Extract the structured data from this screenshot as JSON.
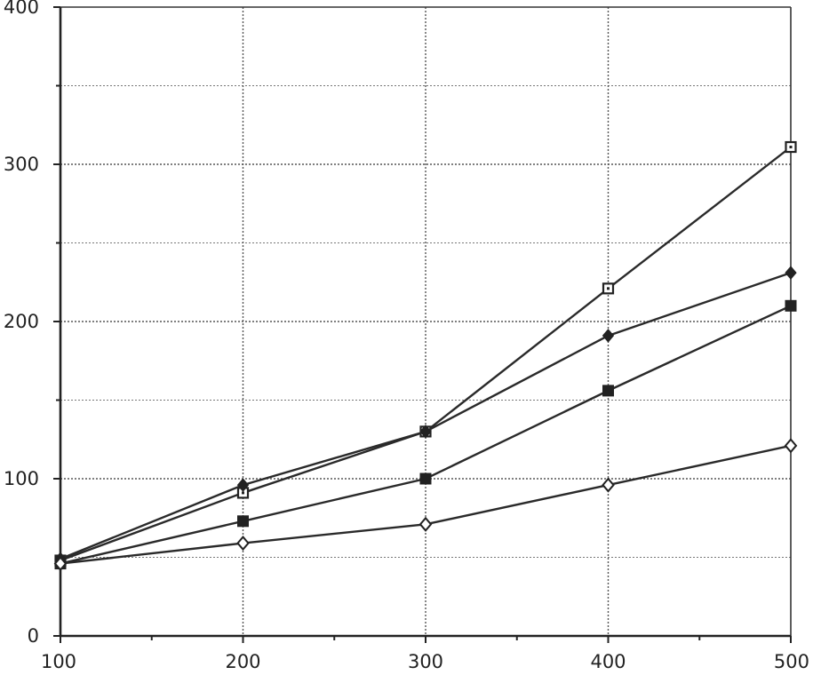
{
  "chart_data": {
    "type": "line",
    "title": "",
    "xlabel": "",
    "ylabel": "",
    "x": [
      100,
      200,
      300,
      400,
      500
    ],
    "xlim": [
      100,
      500
    ],
    "ylim": [
      0,
      400
    ],
    "x_ticks": [
      "100",
      "200",
      "300",
      "400",
      "500"
    ],
    "y_ticks": [
      "0",
      "100",
      "200",
      "300",
      "400"
    ],
    "y_ticks_values": [
      0,
      100,
      200,
      300,
      400
    ],
    "grid": true,
    "series": [
      {
        "marker": "open-square",
        "values": [
          48,
          91,
          130,
          221,
          311
        ]
      },
      {
        "marker": "filled-diamond",
        "values": [
          49,
          96,
          130,
          191,
          231
        ]
      },
      {
        "marker": "filled-square",
        "values": [
          46,
          73,
          100,
          156,
          210
        ]
      },
      {
        "marker": "open-diamond",
        "values": [
          46,
          59,
          71,
          96,
          121
        ]
      }
    ]
  }
}
